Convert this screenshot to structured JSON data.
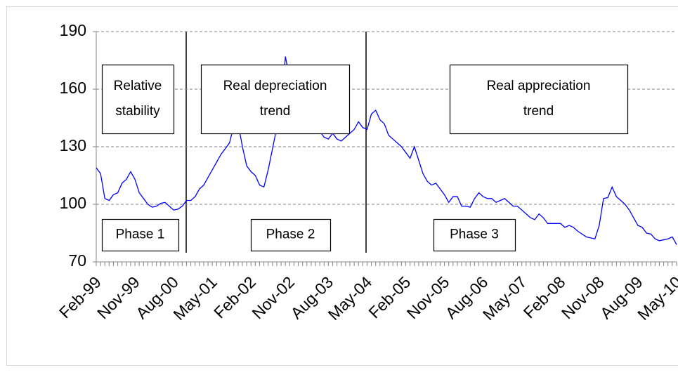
{
  "chart_data": {
    "type": "line",
    "categories": [
      "Feb-99",
      null,
      null,
      null,
      null,
      null,
      null,
      null,
      null,
      "Nov-99",
      null,
      null,
      null,
      null,
      null,
      null,
      null,
      null,
      "Aug-00",
      null,
      null,
      null,
      null,
      null,
      null,
      null,
      null,
      "May-01",
      null,
      null,
      null,
      null,
      null,
      null,
      null,
      null,
      "Feb-02",
      null,
      null,
      null,
      null,
      null,
      null,
      null,
      null,
      "Nov-02",
      null,
      null,
      null,
      null,
      null,
      null,
      null,
      null,
      "Aug-03",
      null,
      null,
      null,
      null,
      null,
      null,
      null,
      null,
      "May-04",
      null,
      null,
      null,
      null,
      null,
      null,
      null,
      null,
      "Feb-05",
      null,
      null,
      null,
      null,
      null,
      null,
      null,
      null,
      "Nov-05",
      null,
      null,
      null,
      null,
      null,
      null,
      null,
      null,
      "Aug-06",
      null,
      null,
      null,
      null,
      null,
      null,
      null,
      null,
      "May-07",
      null,
      null,
      null,
      null,
      null,
      null,
      null,
      null,
      "Feb-08",
      null,
      null,
      null,
      null,
      null,
      null,
      null,
      null,
      "Nov-08",
      null,
      null,
      null,
      null,
      null,
      null,
      null,
      null,
      "Aug-09",
      null,
      null,
      null,
      null,
      null,
      null,
      null,
      null,
      "May-10"
    ],
    "values": [
      119,
      116,
      103,
      102,
      105,
      106,
      111,
      113,
      117,
      113,
      106,
      103,
      100,
      98.5,
      99,
      100.5,
      101,
      99,
      97,
      97.5,
      99,
      102,
      102,
      104,
      108,
      110,
      114,
      118,
      122,
      126,
      129,
      132,
      141,
      142,
      130,
      120,
      117,
      115,
      110,
      109,
      118,
      129,
      140,
      150,
      177,
      165,
      163,
      160,
      161,
      165,
      158,
      142,
      138,
      135,
      134,
      137,
      134,
      133,
      135,
      137,
      139,
      143,
      140,
      139,
      147,
      149,
      144,
      142,
      136,
      134,
      132,
      130,
      127,
      124,
      130,
      123,
      116,
      112,
      110,
      111,
      108,
      105,
      101,
      104,
      104,
      99,
      99,
      98.5,
      103,
      106,
      104,
      103,
      103,
      101,
      102,
      103,
      101,
      99,
      99,
      97,
      95,
      93,
      92,
      95,
      93,
      90,
      90,
      90,
      90,
      88,
      89,
      88,
      86,
      84.5,
      83,
      82.5,
      82,
      89,
      103,
      103.5,
      109,
      104,
      102,
      100,
      97,
      93,
      89,
      88,
      85,
      84.5,
      82,
      81,
      81.5,
      82,
      83,
      79
    ],
    "color": "#0000ff",
    "ylim": [
      70,
      190
    ],
    "yticks": [
      70,
      100,
      130,
      160,
      190
    ],
    "grid": true,
    "annotations": [
      {
        "lines": [
          "Relative",
          "stability"
        ]
      },
      {
        "lines": [
          "Real depreciation",
          "trend"
        ]
      },
      {
        "lines": [
          "Real appreciation",
          "trend"
        ]
      },
      {
        "lines": [
          "Phase 1"
        ]
      },
      {
        "lines": [
          "Phase 2"
        ]
      },
      {
        "lines": [
          "Phase 3"
        ]
      }
    ]
  }
}
